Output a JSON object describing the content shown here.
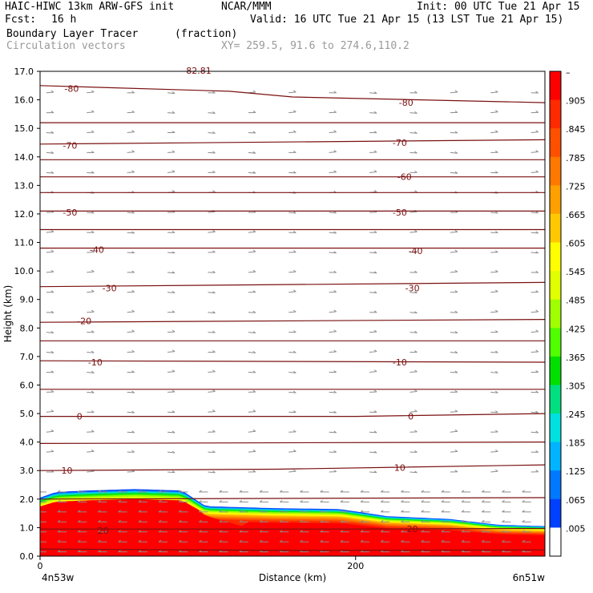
{
  "header": {
    "title_left": "HAIC-HIWC 13km ARW-GFS init",
    "org": "NCAR/MMM",
    "init": "Init: 00 UTC Tue 21 Apr 15",
    "fcst_label": "Fcst:",
    "fcst_value": "16 h",
    "valid": "Valid: 16 UTC Tue 21 Apr 15 (13 LST Tue 21 Apr 15)",
    "field1": "Boundary Layer Tracer",
    "field1_units": "(fraction)",
    "field2": "Circulation vectors",
    "xy": "XY= 259.5, 91.6 to 274.6,110.2",
    "top_clipped_label": "-82.81"
  },
  "chart_data": {
    "type": "heatmap",
    "title": "Boundary Layer Tracer",
    "ylabel": "Height (km)",
    "xlabel": "Distance (km)",
    "ylim": [
      0,
      17
    ],
    "xlim": [
      0,
      320
    ],
    "yticks": [
      "0.0",
      "1.0",
      "2.0",
      "3.0",
      "4.0",
      "5.0",
      "6.0",
      "7.0",
      "8.0",
      "9.0",
      "10.0",
      "11.0",
      "12.0",
      "13.0",
      "14.0",
      "15.0",
      "16.0",
      "17.0"
    ],
    "xticks": [
      {
        "value": 0,
        "label": "0"
      },
      {
        "value": 200,
        "label": "200"
      }
    ],
    "x_endpoints": [
      "4n53w",
      "6n51w"
    ],
    "colorbar": {
      "labels": [
        "–",
        ".905",
        ".845",
        ".785",
        ".725",
        ".665",
        ".605",
        ".545",
        ".485",
        ".425",
        ".365",
        ".305",
        ".245",
        ".185",
        ".125",
        ".065",
        ".005"
      ],
      "colors": [
        "#ff0000",
        "#ff2a00",
        "#ff5000",
        "#ff7800",
        "#ffa000",
        "#ffc800",
        "#ffff00",
        "#e0ff00",
        "#a0ff00",
        "#50ff00",
        "#00e000",
        "#00e080",
        "#00e0e0",
        "#00b4ff",
        "#0078ff",
        "#0040ff",
        "#ffffff"
      ]
    },
    "tracer_top_km": [
      {
        "x": 0,
        "z": 2.05
      },
      {
        "x": 10,
        "z": 2.25
      },
      {
        "x": 30,
        "z": 2.3
      },
      {
        "x": 60,
        "z": 2.35
      },
      {
        "x": 90,
        "z": 2.3
      },
      {
        "x": 105,
        "z": 1.75
      },
      {
        "x": 150,
        "z": 1.68
      },
      {
        "x": 190,
        "z": 1.65
      },
      {
        "x": 220,
        "z": 1.4
      },
      {
        "x": 260,
        "z": 1.3
      },
      {
        "x": 290,
        "z": 1.1
      },
      {
        "x": 320,
        "z": 1.05
      }
    ],
    "temperature_contours": [
      {
        "label": "20",
        "label_positions": [
          {
            "x": 40,
            "z": 0.9
          },
          {
            "x": 236,
            "z": 0.95
          }
        ],
        "points": [
          {
            "x": 0,
            "z": 0.95
          },
          {
            "x": 80,
            "z": 0.95
          },
          {
            "x": 200,
            "z": 0.95
          },
          {
            "x": 320,
            "z": 0.97
          }
        ]
      },
      {
        "label": "10",
        "label_positions": [
          {
            "x": 17,
            "z": 3.0
          },
          {
            "x": 228,
            "z": 3.1
          }
        ],
        "points": [
          {
            "x": 0,
            "z": 3.0
          },
          {
            "x": 150,
            "z": 3.05
          },
          {
            "x": 320,
            "z": 3.2
          }
        ]
      },
      {
        "label": "0",
        "label_positions": [
          {
            "x": 25,
            "z": 4.9
          },
          {
            "x": 235,
            "z": 4.9
          }
        ],
        "points": [
          {
            "x": 0,
            "z": 4.9
          },
          {
            "x": 200,
            "z": 4.9
          },
          {
            "x": 320,
            "z": 5.0
          }
        ]
      },
      {
        "label": "-10",
        "label_positions": [
          {
            "x": 35,
            "z": 6.8
          },
          {
            "x": 228,
            "z": 6.8
          }
        ],
        "points": [
          {
            "x": 0,
            "z": 6.85
          },
          {
            "x": 320,
            "z": 6.8
          }
        ]
      },
      {
        "label": "-20",
        "label_positions": [
          {
            "x": 28,
            "z": 8.25
          }
        ],
        "points": [
          {
            "x": 0,
            "z": 8.2
          },
          {
            "x": 320,
            "z": 8.3
          }
        ]
      },
      {
        "label": "-30",
        "label_positions": [
          {
            "x": 44,
            "z": 9.4
          },
          {
            "x": 236,
            "z": 9.4
          }
        ],
        "points": [
          {
            "x": 0,
            "z": 9.45
          },
          {
            "x": 320,
            "z": 9.6
          }
        ]
      },
      {
        "label": "-40",
        "label_positions": [
          {
            "x": 36,
            "z": 10.75
          },
          {
            "x": 238,
            "z": 10.7
          }
        ],
        "points": [
          {
            "x": 0,
            "z": 10.8
          },
          {
            "x": 320,
            "z": 10.8
          }
        ]
      },
      {
        "label": "-50",
        "label_positions": [
          {
            "x": 19,
            "z": 12.05
          },
          {
            "x": 228,
            "z": 12.05
          }
        ],
        "points": [
          {
            "x": 0,
            "z": 12.1
          },
          {
            "x": 320,
            "z": 12.1
          }
        ]
      },
      {
        "label": "-60",
        "label_positions": [
          {
            "x": 231,
            "z": 13.3
          }
        ],
        "points": [
          {
            "x": 0,
            "z": 13.3
          },
          {
            "x": 320,
            "z": 13.3
          }
        ]
      },
      {
        "label": "-70",
        "label_positions": [
          {
            "x": 19,
            "z": 14.4
          },
          {
            "x": 228,
            "z": 14.5
          }
        ],
        "points": [
          {
            "x": 0,
            "z": 14.45
          },
          {
            "x": 320,
            "z": 14.6
          }
        ]
      },
      {
        "label": "-80",
        "label_positions": [
          {
            "x": 20,
            "z": 16.4
          },
          {
            "x": 232,
            "z": 15.9
          }
        ],
        "points": [
          {
            "x": 0,
            "z": 16.5
          },
          {
            "x": 120,
            "z": 16.3
          },
          {
            "x": 160,
            "z": 16.1
          },
          {
            "x": 320,
            "z": 15.9
          }
        ]
      },
      {
        "label": "",
        "label_positions": [],
        "points": [
          {
            "x": 0,
            "z": 0.25
          },
          {
            "x": 160,
            "z": 0.2
          },
          {
            "x": 320,
            "z": 0.22
          }
        ]
      },
      {
        "label": "",
        "label_positions": [],
        "points": [
          {
            "x": 0,
            "z": 2.0
          },
          {
            "x": 320,
            "z": 2.05
          }
        ]
      },
      {
        "label": "",
        "label_positions": [],
        "points": [
          {
            "x": 0,
            "z": 3.95
          },
          {
            "x": 320,
            "z": 4.0
          }
        ]
      },
      {
        "label": "",
        "label_positions": [],
        "points": [
          {
            "x": 0,
            "z": 5.85
          },
          {
            "x": 320,
            "z": 5.85
          }
        ]
      },
      {
        "label": "",
        "label_positions": [],
        "points": [
          {
            "x": 0,
            "z": 7.55
          },
          {
            "x": 320,
            "z": 7.55
          }
        ]
      },
      {
        "label": "",
        "label_positions": [],
        "points": [
          {
            "x": 0,
            "z": 11.45
          },
          {
            "x": 320,
            "z": 11.45
          }
        ]
      },
      {
        "label": "",
        "label_positions": [],
        "points": [
          {
            "x": 0,
            "z": 12.75
          },
          {
            "x": 320,
            "z": 12.75
          }
        ]
      },
      {
        "label": "",
        "label_positions": [],
        "points": [
          {
            "x": 0,
            "z": 13.9
          },
          {
            "x": 320,
            "z": 13.9
          }
        ]
      },
      {
        "label": "",
        "label_positions": [],
        "points": [
          {
            "x": 0,
            "z": 15.2
          },
          {
            "x": 320,
            "z": 15.2
          }
        ]
      }
    ],
    "vectors": {
      "u_upper": 1.0,
      "u_lower": -1.0,
      "shear_height_km": 2.3
    }
  }
}
